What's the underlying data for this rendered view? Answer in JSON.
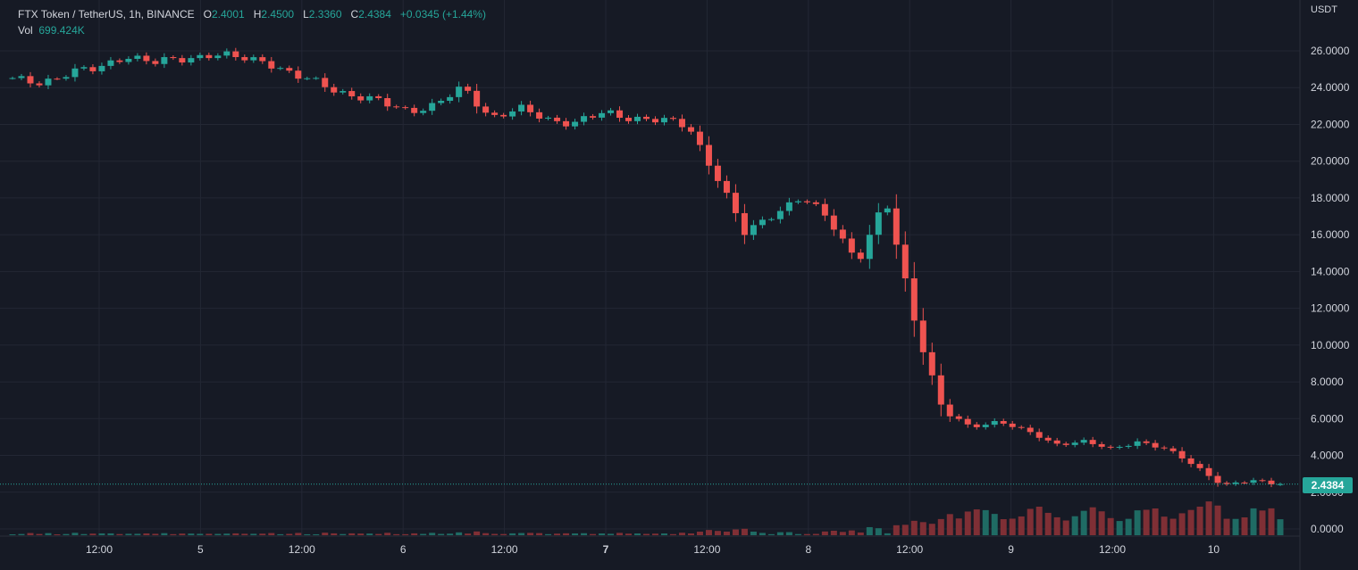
{
  "legend": {
    "symbol": "FTX Token / TetherUS, 1h, BINANCE",
    "open_label": "O",
    "open": "2.4001",
    "high_label": "H",
    "high": "2.4500",
    "low_label": "L",
    "low": "2.3360",
    "close_label": "C",
    "close": "2.4384",
    "change": "+0.0345 (+1.44%)",
    "vol_label": "Vol",
    "vol": "699.424K"
  },
  "axis": {
    "currency": "USDT",
    "last_price": "2.4384"
  },
  "colors": {
    "background": "#161a25",
    "up": "#26a69a",
    "down": "#ef5350",
    "vol_up": "#1f6b64",
    "vol_down": "#7f2f35",
    "grid": "#232734",
    "text": "#d1d4dc"
  },
  "chart_data": {
    "type": "candlestick",
    "interval": "1h",
    "ylim": [
      0,
      26
    ],
    "y_ticks": [
      "26.0000",
      "24.0000",
      "22.0000",
      "20.0000",
      "18.0000",
      "16.0000",
      "14.0000",
      "12.0000",
      "10.0000",
      "8.0000",
      "6.0000",
      "4.0000",
      "2.0000",
      "0.0000"
    ],
    "x_ticks": [
      {
        "label": "12:00",
        "bold": false
      },
      {
        "label": "5",
        "bold": false
      },
      {
        "label": "12:00",
        "bold": false
      },
      {
        "label": "6",
        "bold": false
      },
      {
        "label": "12:00",
        "bold": false
      },
      {
        "label": "7",
        "bold": true
      },
      {
        "label": "12:00",
        "bold": false
      },
      {
        "label": "8",
        "bold": false
      },
      {
        "label": "12:00",
        "bold": false
      },
      {
        "label": "9",
        "bold": false
      },
      {
        "label": "12:00",
        "bold": false
      },
      {
        "label": "10",
        "bold": false
      }
    ],
    "key_points": [
      {
        "close": 24.4
      },
      {
        "close": 24.3
      },
      {
        "close": 24.8
      },
      {
        "close": 25.0
      },
      {
        "close": 25.8
      },
      {
        "close": 25.3
      },
      {
        "close": 25.6
      },
      {
        "close": 25.8
      },
      {
        "close": 25.6
      },
      {
        "close": 25.5
      },
      {
        "close": 24.6
      },
      {
        "close": 24.2
      },
      {
        "close": 23.6
      },
      {
        "close": 23.2
      },
      {
        "close": 22.8
      },
      {
        "close": 23.0
      },
      {
        "close": 24.0
      },
      {
        "close": 22.4
      },
      {
        "close": 22.8
      },
      {
        "close": 22.3
      },
      {
        "close": 22.1
      },
      {
        "close": 22.6
      },
      {
        "close": 22.4
      },
      {
        "close": 22.2
      },
      {
        "close": 21.9
      },
      {
        "close": 19.2
      },
      {
        "close": 16.0
      },
      {
        "close": 17.2
      },
      {
        "close": 18.0
      },
      {
        "close": 16.8
      },
      {
        "close": 14.6
      },
      {
        "close": 17.8
      },
      {
        "close": 11.5
      },
      {
        "close": 6.5
      },
      {
        "close": 5.5
      },
      {
        "close": 5.9
      },
      {
        "close": 5.3
      },
      {
        "close": 4.6
      },
      {
        "close": 4.8
      },
      {
        "close": 4.3
      },
      {
        "close": 4.8
      },
      {
        "close": 4.3
      },
      {
        "close": 3.4
      },
      {
        "close": 2.4
      },
      {
        "close": 2.6
      },
      {
        "close": 2.44
      }
    ],
    "last_price": 2.4384
  }
}
